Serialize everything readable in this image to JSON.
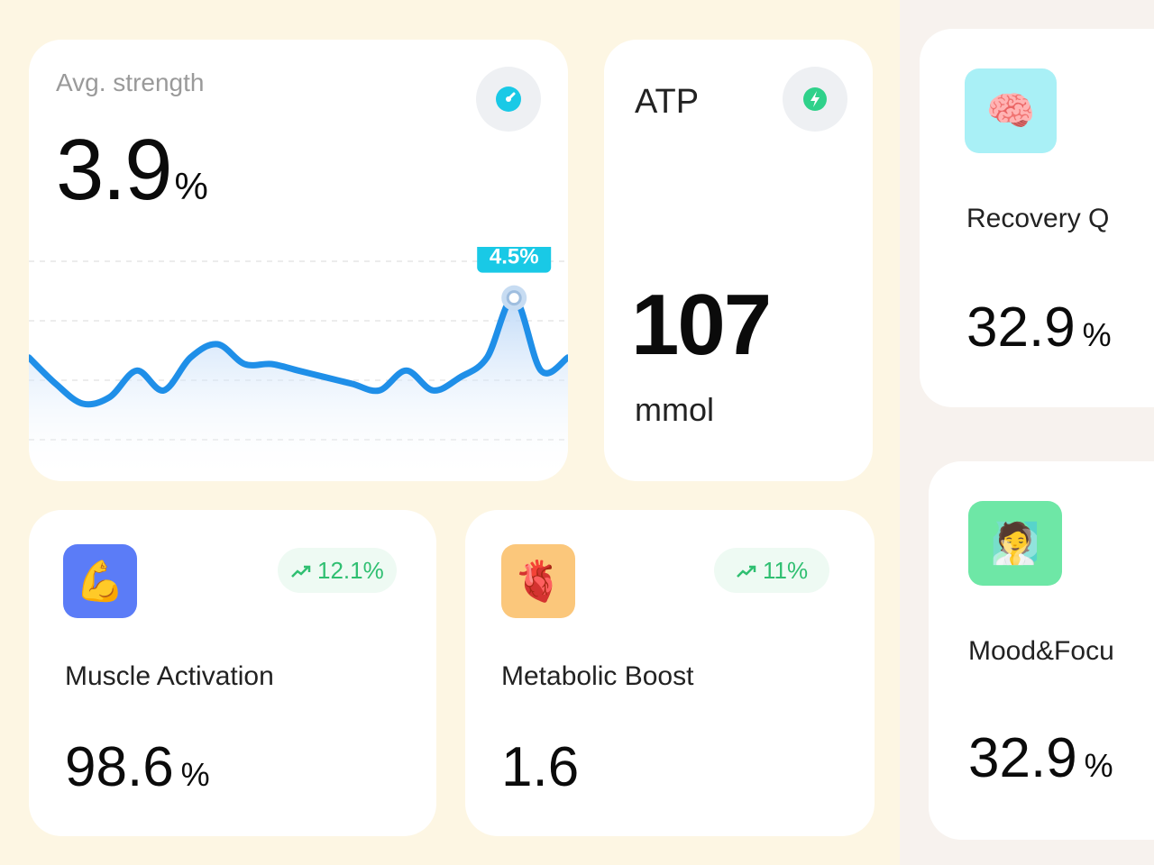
{
  "colors": {
    "chart_line": "#1f8fe8",
    "tooltip_bg": "#19c9e6",
    "trend_green": "#2fbf71",
    "brain_tile": "#a9f0f6",
    "mood_tile": "#6ee7a6",
    "muscle_tile": "#5b7cf7",
    "metabolic_tile": "#fbc77b"
  },
  "strength": {
    "label": "Avg. strength",
    "value": "3.9",
    "unit": "%",
    "icon": "gauge-icon",
    "tooltip": "4.5%"
  },
  "atp": {
    "label": "ATP",
    "value": "107",
    "unit": "mmol",
    "icon": "bolt-icon"
  },
  "recovery": {
    "title": "Recovery Q",
    "value": "32.9",
    "unit": "%",
    "icon": "brain-icon"
  },
  "mood": {
    "title": "Mood&Focu",
    "value": "32.9",
    "unit": "%",
    "icon": "person-icon"
  },
  "muscle": {
    "title": "Muscle Activation",
    "value": "98.6",
    "unit": "%",
    "trend": "12.1%",
    "icon": "flexed-biceps-icon"
  },
  "metabolic": {
    "title": "Metabolic Boost",
    "value": "1.6",
    "trend": "11%",
    "icon": "anatomical-heart-icon"
  },
  "chart_data": {
    "type": "area",
    "title": "",
    "xlabel": "",
    "ylabel": "",
    "grid": true,
    "highlight_index": 18,
    "highlight_label": "4.5%",
    "values": [
      3.6,
      3.2,
      2.9,
      3.0,
      3.4,
      3.1,
      3.6,
      3.8,
      3.5,
      3.5,
      3.4,
      3.3,
      3.2,
      3.1,
      3.4,
      3.1,
      3.3,
      3.6,
      4.5,
      3.4,
      3.6
    ]
  }
}
